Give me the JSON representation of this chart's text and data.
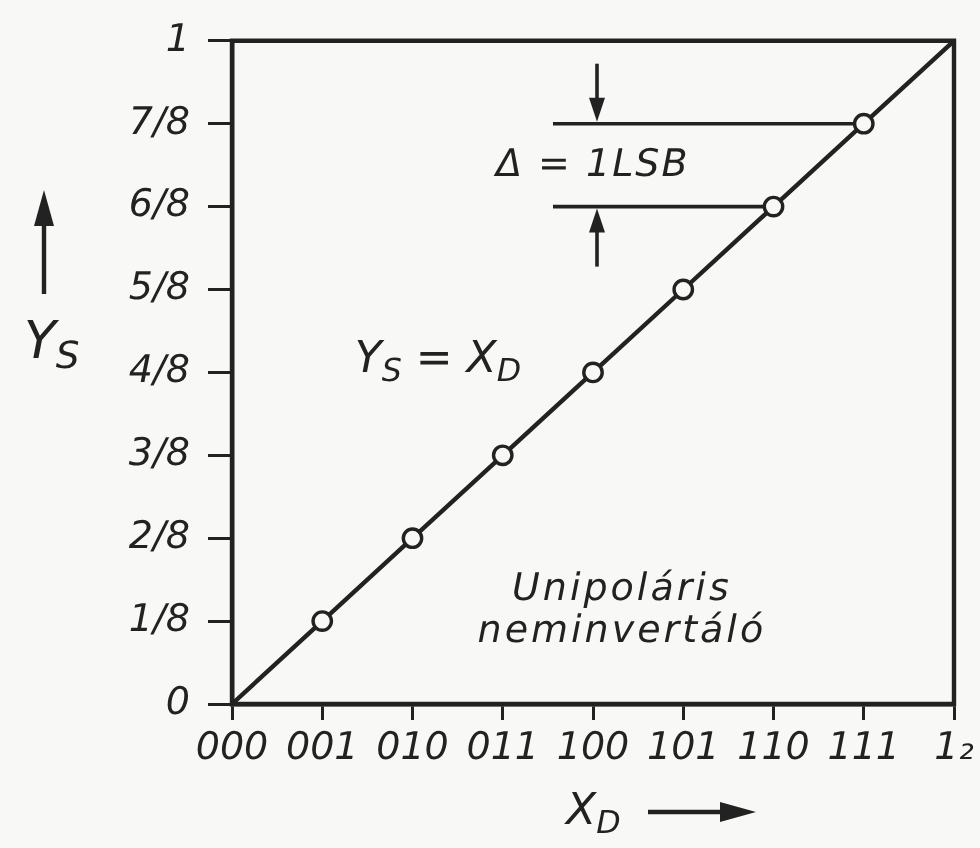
{
  "chart_data": {
    "type": "line",
    "xlabel": "X$_{D}$",
    "ylabel": "Y$_{S}$",
    "categories": [
      "000",
      "001",
      "010",
      "011",
      "100",
      "101",
      "110",
      "111",
      "1₂"
    ],
    "series": [
      {
        "type": "line",
        "color": "#222222",
        "marker": "none",
        "values": [
          0,
          0.125,
          0.25,
          0.375,
          0.5,
          0.625,
          0.75,
          0.875,
          1
        ]
      },
      {
        "type": "scatter",
        "color": "#222222",
        "marker": "circle",
        "values": [
          null,
          0.125,
          0.25,
          0.375,
          0.5,
          0.625,
          0.75,
          0.875,
          null
        ]
      }
    ],
    "ylim": [
      0,
      1
    ],
    "yticks": [
      0,
      {
        "value": 0.125,
        "label": "1/8"
      },
      {
        "value": 0.25,
        "label": "2/8"
      },
      {
        "value": 0.375,
        "label": "3/8"
      },
      {
        "value": 0.5,
        "label": "4/8"
      },
      {
        "value": 0.625,
        "label": "5/8"
      },
      {
        "value": 0.75,
        "label": "6/8"
      },
      {
        "value": 0.875,
        "label": "7/8"
      },
      1
    ],
    "annotations": [
      "Y$_{S}$ = X$_{D}$",
      {
        "text": "Δ = 1LSB",
        "x": "110",
        "y": 0.75
      },
      "Unipoláris neminvertáló"
    ]
  }
}
